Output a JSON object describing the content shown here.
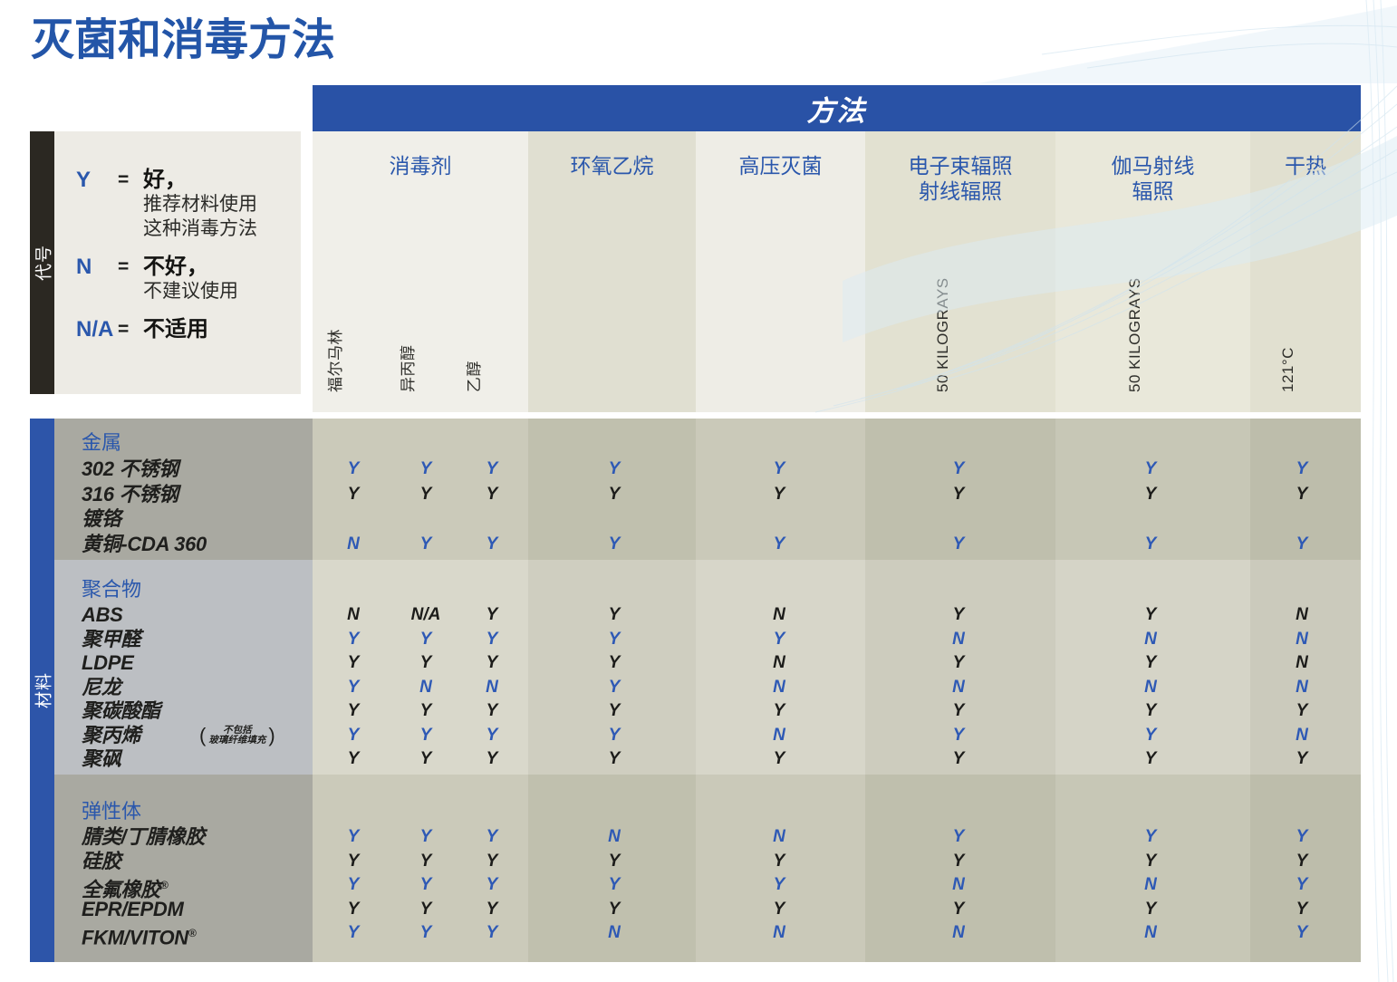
{
  "title": "灭菌和消毒方法",
  "methods_header": "方法",
  "colors": {
    "accent_blue": "#2355a8",
    "bar_blue": "#2952a6",
    "value_blue": "#2e59b5",
    "value_black": "#1c1c1a"
  },
  "legend": {
    "side_label": "代号",
    "entries": [
      {
        "code": "Y",
        "eq": "=",
        "term": "好，",
        "desc": [
          "推荐材料使用",
          "这种消毒方法"
        ]
      },
      {
        "code": "N",
        "eq": "=",
        "term": "不好，",
        "desc": [
          "不建议使用"
        ]
      },
      {
        "code": "N/A",
        "eq": "=",
        "term": "不适用",
        "desc": []
      }
    ]
  },
  "materials_side_label": "材料",
  "columns": [
    {
      "label_lines": [
        "消毒剂"
      ],
      "sub_labels": [
        "福尔马林",
        "异丙醇",
        "乙醇"
      ]
    },
    {
      "label_lines": [
        "环氧乙烷"
      ],
      "sub_labels": []
    },
    {
      "label_lines": [
        "高压灭菌"
      ],
      "sub_labels": []
    },
    {
      "label_lines": [
        "电子束辐照",
        "射线辐照"
      ],
      "sub_labels": [
        "50 KILOGRAYS"
      ]
    },
    {
      "label_lines": [
        "伽马射线",
        "辐照"
      ],
      "sub_labels": [
        "50 KILOGRAYS"
      ]
    },
    {
      "label_lines": [
        "干热"
      ],
      "sub_labels": [
        "121°C"
      ]
    }
  ],
  "value_columns": [
    "福尔马林",
    "异丙醇",
    "乙醇",
    "环氧乙烷",
    "高压灭菌",
    "电子束辐照 50 KILOGRAYS",
    "伽马射线辐照 50 KILOGRAYS",
    "干热 121°C"
  ],
  "groups": [
    {
      "name": "金属",
      "rows": [
        {
          "material": "302 不锈钢",
          "color": "blue",
          "values": [
            "Y",
            "Y",
            "Y",
            "Y",
            "Y",
            "Y",
            "Y",
            "Y"
          ]
        },
        {
          "material": "316 不锈钢",
          "color": "black",
          "values": [
            "Y",
            "Y",
            "Y",
            "Y",
            "Y",
            "Y",
            "Y",
            "Y"
          ]
        },
        {
          "material": "镀铬",
          "color": "black",
          "values": [
            "",
            "",
            "",
            "",
            "",
            "",
            "",
            ""
          ]
        },
        {
          "material": "黄铜-CDA 360",
          "color": "blue",
          "values": [
            "N",
            "Y",
            "Y",
            "Y",
            "Y",
            "Y",
            "Y",
            "Y"
          ]
        }
      ]
    },
    {
      "name": "聚合物",
      "rows": [
        {
          "material": "ABS",
          "color": "black",
          "values": [
            "N",
            "N/A",
            "Y",
            "Y",
            "N",
            "Y",
            "Y",
            "N"
          ]
        },
        {
          "material": "聚甲醛",
          "color": "blue",
          "values": [
            "Y",
            "Y",
            "Y",
            "Y",
            "Y",
            "N",
            "N",
            "N"
          ]
        },
        {
          "material": "LDPE",
          "color": "black",
          "values": [
            "Y",
            "Y",
            "Y",
            "Y",
            "N",
            "Y",
            "Y",
            "N"
          ]
        },
        {
          "material": "尼龙",
          "color": "blue",
          "values": [
            "Y",
            "N",
            "N",
            "Y",
            "N",
            "N",
            "N",
            "N"
          ]
        },
        {
          "material": "聚碳酸酯",
          "color": "black",
          "values": [
            "Y",
            "Y",
            "Y",
            "Y",
            "Y",
            "Y",
            "Y",
            "Y"
          ]
        },
        {
          "material": "聚丙烯",
          "color": "blue",
          "note_lines": [
            "不包括",
            "玻璃纤维填充"
          ],
          "values": [
            "Y",
            "Y",
            "Y",
            "Y",
            "N",
            "Y",
            "Y",
            "N"
          ]
        },
        {
          "material": "聚砜",
          "color": "black",
          "values": [
            "Y",
            "Y",
            "Y",
            "Y",
            "Y",
            "Y",
            "Y",
            "Y"
          ]
        }
      ]
    },
    {
      "name": "弹性体",
      "rows": [
        {
          "material": "腈类/丁腈橡胶",
          "color": "blue",
          "values": [
            "Y",
            "Y",
            "Y",
            "N",
            "N",
            "Y",
            "Y",
            "Y"
          ]
        },
        {
          "material": "硅胶",
          "color": "black",
          "values": [
            "Y",
            "Y",
            "Y",
            "Y",
            "Y",
            "Y",
            "Y",
            "Y"
          ]
        },
        {
          "material": "全氟橡胶®",
          "color": "blue",
          "values": [
            "Y",
            "Y",
            "Y",
            "Y",
            "Y",
            "N",
            "N",
            "Y"
          ]
        },
        {
          "material": "EPR/EPDM",
          "color": "black",
          "values": [
            "Y",
            "Y",
            "Y",
            "Y",
            "Y",
            "Y",
            "Y",
            "Y"
          ]
        },
        {
          "material": "FKM/VITON®",
          "color": "blue",
          "values": [
            "Y",
            "Y",
            "Y",
            "N",
            "N",
            "N",
            "N",
            "Y"
          ]
        }
      ]
    }
  ]
}
